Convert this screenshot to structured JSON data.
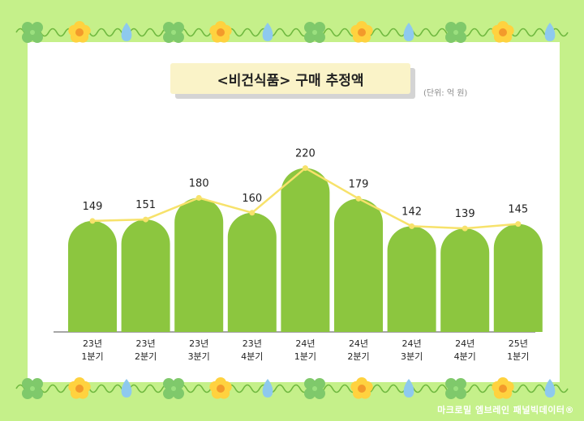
{
  "chart_data": {
    "type": "bar",
    "title": "<비건식품> 구매 추정액",
    "unit": "(단위: 억 원)",
    "categories": [
      [
        "23년",
        "1분기"
      ],
      [
        "23년",
        "2분기"
      ],
      [
        "23년",
        "3분기"
      ],
      [
        "23년",
        "4분기"
      ],
      [
        "24년",
        "1분기"
      ],
      [
        "24년",
        "2분기"
      ],
      [
        "24년",
        "3분기"
      ],
      [
        "24년",
        "4분기"
      ],
      [
        "25년",
        "1분기"
      ]
    ],
    "values": [
      149,
      151,
      180,
      160,
      220,
      179,
      142,
      139,
      145
    ],
    "overlay_line": true,
    "ylim": [
      0,
      230
    ],
    "grid": false,
    "legend": "none"
  },
  "credit": "마크로밀 엠브레인 패널빅데이터®",
  "colors": {
    "background": "#c5f08a",
    "bar": "#8cc63f",
    "line": "#f7e26b",
    "title_box": "#faf3c8",
    "clover": "#7fc96b",
    "flower": "#ffd23f",
    "drop": "#8ec9ee",
    "vine": "#6fb83f"
  },
  "decorations": {
    "border_icons": [
      "clover-icon",
      "flower-icon",
      "water-drop-icon"
    ]
  }
}
